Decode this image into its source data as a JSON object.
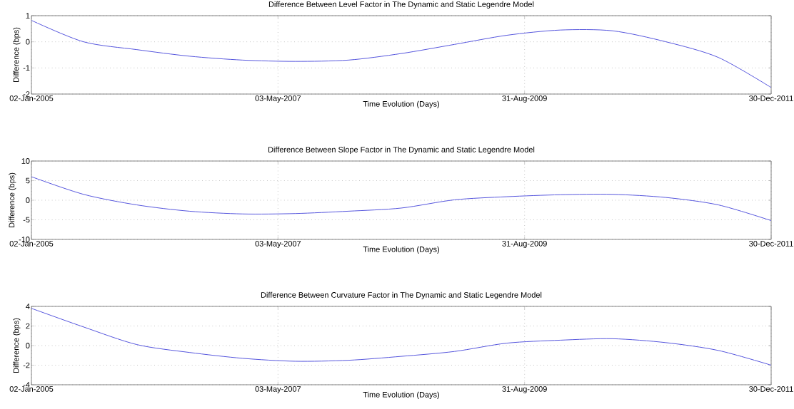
{
  "chart_data": [
    {
      "type": "line",
      "title": "Difference Between Level Factor in The Dynamic and Static Legendre Model",
      "xlabel": "Time Evolution (Days)",
      "ylabel": "Difference (bps)",
      "color": "#5555dd",
      "grid": true,
      "x": [
        "2005-01-02",
        "2005-07-01",
        "2006-01-01",
        "2006-07-01",
        "2007-01-01",
        "2007-07-01",
        "2008-01-01",
        "2008-07-01",
        "2009-01-01",
        "2009-07-01",
        "2010-01-01",
        "2010-07-01",
        "2011-01-01",
        "2011-07-01",
        "2011-12-30"
      ],
      "values": [
        0.82,
        0.0,
        -0.3,
        -0.55,
        -0.7,
        -0.75,
        -0.7,
        -0.45,
        -0.1,
        0.25,
        0.45,
        0.42,
        0.0,
        -0.6,
        -1.75
      ],
      "xlim": [
        "2005-01-02",
        "2011-12-30"
      ],
      "ylim": [
        -2,
        1
      ],
      "yticks": [
        -2,
        -1,
        0,
        1
      ],
      "xticks": [
        {
          "value": "2005-01-02",
          "label": "02-Jan-2005"
        },
        {
          "value": "2007-05-03",
          "label": "03-May-2007"
        },
        {
          "value": "2009-08-31",
          "label": "31-Aug-2009"
        },
        {
          "value": "2011-12-30",
          "label": "30-Dec-2011"
        }
      ]
    },
    {
      "type": "line",
      "title": "Difference Between Slope Factor in The Dynamic and Static Legendre Model",
      "xlabel": "Time Evolution (Days)",
      "ylabel": "Difference (bps)",
      "color": "#5555dd",
      "grid": true,
      "x": [
        "2005-01-02",
        "2005-07-01",
        "2006-01-01",
        "2006-07-01",
        "2007-01-01",
        "2007-07-01",
        "2008-01-01",
        "2008-07-01",
        "2009-01-01",
        "2009-07-01",
        "2010-01-01",
        "2010-07-01",
        "2011-01-01",
        "2011-07-01",
        "2011-12-30"
      ],
      "values": [
        6,
        1.5,
        -1.2,
        -2.8,
        -3.5,
        -3.4,
        -2.8,
        -2.0,
        0.1,
        0.9,
        1.4,
        1.5,
        0.7,
        -1.2,
        -5.2
      ],
      "xlim": [
        "2005-01-02",
        "2011-12-30"
      ],
      "ylim": [
        -10,
        10
      ],
      "yticks": [
        -10,
        -5,
        0,
        5,
        10
      ],
      "xticks": [
        {
          "value": "2005-01-02",
          "label": "02-Jan-2005"
        },
        {
          "value": "2007-05-03",
          "label": "03-May-2007"
        },
        {
          "value": "2009-08-31",
          "label": "31-Aug-2009"
        },
        {
          "value": "2011-12-30",
          "label": "30-Dec-2011"
        }
      ]
    },
    {
      "type": "line",
      "title": "Difference Between Curvature Factor in The Dynamic and Static Legendre Model",
      "xlabel": "Time Evolution (Days)",
      "ylabel": "Difference (bps)",
      "color": "#5555dd",
      "grid": true,
      "x": [
        "2005-01-02",
        "2005-07-01",
        "2006-01-01",
        "2006-07-01",
        "2007-01-01",
        "2007-07-01",
        "2008-01-01",
        "2008-07-01",
        "2009-01-01",
        "2009-07-01",
        "2010-01-01",
        "2010-07-01",
        "2011-01-01",
        "2011-07-01",
        "2011-12-30"
      ],
      "values": [
        3.8,
        1.9,
        0.1,
        -0.7,
        -1.3,
        -1.6,
        -1.5,
        -1.1,
        -0.6,
        0.25,
        0.55,
        0.7,
        0.3,
        -0.5,
        -2.0
      ],
      "xlim": [
        "2005-01-02",
        "2011-12-30"
      ],
      "ylim": [
        -4,
        4
      ],
      "yticks": [
        -4,
        -2,
        0,
        2,
        4
      ],
      "xticks": [
        {
          "value": "2005-01-02",
          "label": "02-Jan-2005"
        },
        {
          "value": "2007-05-03",
          "label": "03-May-2007"
        },
        {
          "value": "2009-08-31",
          "label": "31-Aug-2009"
        },
        {
          "value": "2011-12-30",
          "label": "30-Dec-2011"
        }
      ]
    }
  ]
}
